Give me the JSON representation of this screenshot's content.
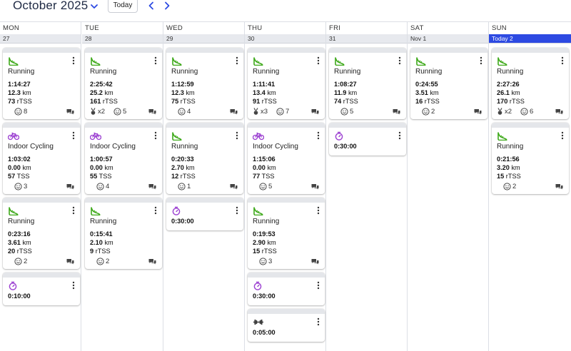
{
  "header": {
    "month_title": "October 2025",
    "today_label": "Today",
    "icons": {
      "dropdown": "chevron-down-icon",
      "prev": "chevron-left-icon",
      "next": "chevron-right-icon"
    }
  },
  "colors": {
    "running": "#3ea91a",
    "cycling": "#9b3fd1",
    "timer": "#9b3fd1",
    "today_bar": "#2d4ae2"
  },
  "days": [
    {
      "dow": "MON",
      "date": "27",
      "today": false,
      "items": [
        {
          "type": "running",
          "title": "Running",
          "duration": "1:14:27",
          "distance": "12.3",
          "distance_unit": "km",
          "load": "73",
          "load_unit": "rTSS",
          "feel": "8",
          "medal": "",
          "comment": true
        },
        {
          "type": "cycling",
          "title": "Indoor Cycling",
          "duration": "1:03:02",
          "distance": "0.00",
          "distance_unit": "km",
          "load": "57",
          "load_unit": "TSS",
          "feel": "3",
          "medal": "",
          "comment": true
        },
        {
          "type": "running",
          "title": "Running",
          "duration": "0:23:16",
          "distance": "3.61",
          "distance_unit": "km",
          "load": "20",
          "load_unit": "rTSS",
          "feel": "2",
          "medal": "",
          "comment": true
        },
        {
          "type": "timer",
          "duration": "0:10:00"
        }
      ]
    },
    {
      "dow": "TUE",
      "date": "28",
      "today": false,
      "items": [
        {
          "type": "running",
          "title": "Running",
          "duration": "2:25:42",
          "distance": "25.2",
          "distance_unit": "km",
          "load": "161",
          "load_unit": "rTSS",
          "feel": "5",
          "medal": "x2",
          "comment": true
        },
        {
          "type": "cycling",
          "title": "Indoor Cycling",
          "duration": "1:00:57",
          "distance": "0.00",
          "distance_unit": "km",
          "load": "55",
          "load_unit": "TSS",
          "feel": "4",
          "medal": "",
          "comment": true
        },
        {
          "type": "running",
          "title": "Running",
          "duration": "0:15:41",
          "distance": "2.10",
          "distance_unit": "km",
          "load": "9",
          "load_unit": "rTSS",
          "feel": "2",
          "medal": "",
          "comment": true
        }
      ]
    },
    {
      "dow": "WED",
      "date": "29",
      "today": false,
      "items": [
        {
          "type": "running",
          "title": "Running",
          "duration": "1:12:59",
          "distance": "12.3",
          "distance_unit": "km",
          "load": "75",
          "load_unit": "rTSS",
          "feel": "4",
          "medal": "",
          "comment": true
        },
        {
          "type": "running",
          "title": "Running",
          "duration": "0:20:33",
          "distance": "2.70",
          "distance_unit": "km",
          "load": "12",
          "load_unit": "rTSS",
          "feel": "1",
          "medal": "",
          "comment": true
        },
        {
          "type": "timer",
          "duration": "0:30:00"
        }
      ]
    },
    {
      "dow": "THU",
      "date": "30",
      "today": false,
      "items": [
        {
          "type": "running",
          "title": "Running",
          "duration": "1:11:41",
          "distance": "13.4",
          "distance_unit": "km",
          "load": "91",
          "load_unit": "rTSS",
          "feel": "7",
          "medal": "x3",
          "comment": true
        },
        {
          "type": "cycling",
          "title": "Indoor Cycling",
          "duration": "1:15:06",
          "distance": "0.00",
          "distance_unit": "km",
          "load": "77",
          "load_unit": "TSS",
          "feel": "5",
          "medal": "",
          "comment": true
        },
        {
          "type": "running",
          "title": "Running",
          "duration": "0:19:53",
          "distance": "2.90",
          "distance_unit": "km",
          "load": "15",
          "load_unit": "rTSS",
          "feel": "3",
          "medal": "",
          "comment": true
        },
        {
          "type": "timer",
          "duration": "0:30:00"
        },
        {
          "type": "strength",
          "duration": "0:05:00"
        }
      ]
    },
    {
      "dow": "FRI",
      "date": "31",
      "today": false,
      "items": [
        {
          "type": "running",
          "title": "Running",
          "duration": "1:08:27",
          "distance": "11.9",
          "distance_unit": "km",
          "load": "74",
          "load_unit": "rTSS",
          "feel": "5",
          "medal": "",
          "comment": true
        },
        {
          "type": "timer",
          "duration": "0:30:00"
        }
      ]
    },
    {
      "dow": "SAT",
      "date": "Nov 1",
      "today": false,
      "items": [
        {
          "type": "running",
          "title": "Running",
          "duration": "0:24:55",
          "distance": "3.51",
          "distance_unit": "km",
          "load": "16",
          "load_unit": "rTSS",
          "feel": "2",
          "medal": "",
          "comment": true
        }
      ]
    },
    {
      "dow": "SUN",
      "date": "Today 2",
      "today": true,
      "items": [
        {
          "type": "running",
          "title": "Running",
          "duration": "2:27:26",
          "distance": "26.1",
          "distance_unit": "km",
          "load": "170",
          "load_unit": "rTSS",
          "feel": "6",
          "medal": "x2",
          "comment": true
        },
        {
          "type": "running",
          "title": "Running",
          "duration": "0:21:56",
          "distance": "3.20",
          "distance_unit": "km",
          "load": "15",
          "load_unit": "rTSS",
          "feel": "2",
          "medal": "",
          "comment": true
        }
      ]
    }
  ]
}
